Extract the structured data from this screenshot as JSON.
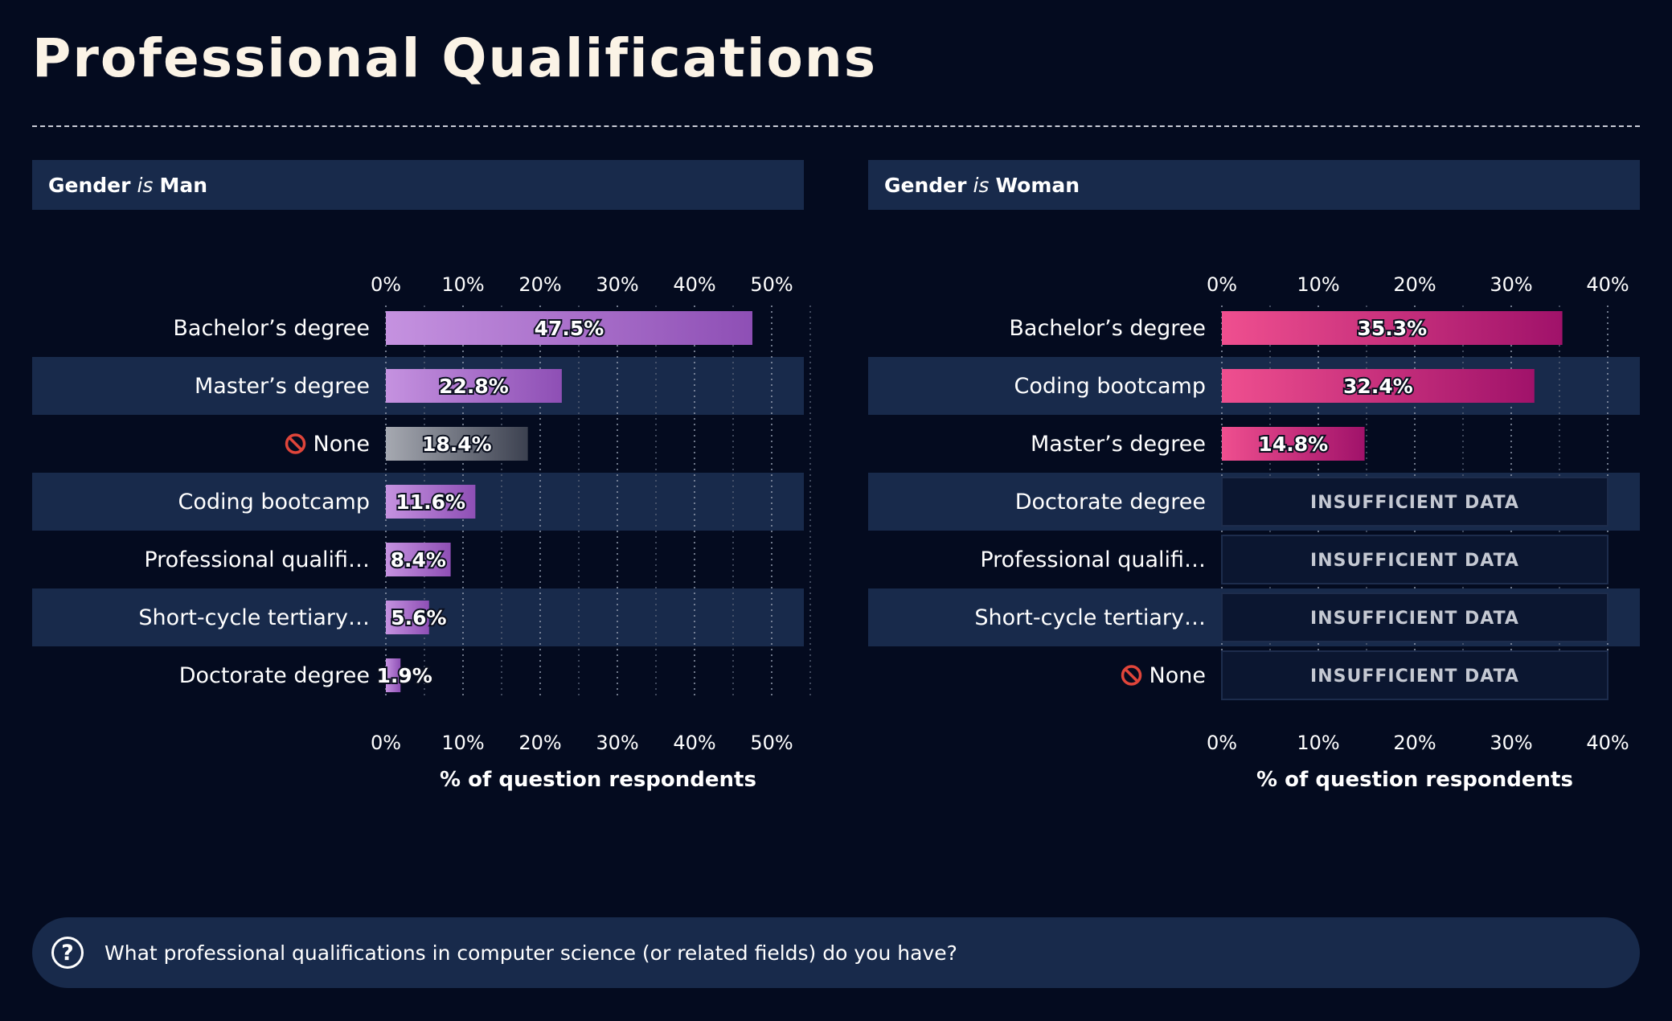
{
  "page": {
    "title": "Professional Qualifications",
    "question": "What professional qualifications in computer science (or related fields) do you have?",
    "question_icon": "question-circle-icon"
  },
  "colors": {
    "background": "#040b1f",
    "panel": "#182a4b",
    "man_bar_start": "#c592e0",
    "man_bar_end": "#8e4fb5",
    "woman_bar_start": "#ef4f8f",
    "woman_bar_end": "#a0126a",
    "none_bar_start": "#a6a9b1",
    "none_bar_end": "#3c4150"
  },
  "chart_data": [
    {
      "type": "bar",
      "orientation": "horizontal",
      "facet_prefix": "Gender",
      "facet_operator": "is",
      "facet_value": "Man",
      "xlabel": "% of question respondents",
      "xlim": [
        0,
        55
      ],
      "ticks": [
        "0%",
        "10%",
        "20%",
        "30%",
        "40%",
        "50%"
      ],
      "tick_values": [
        0,
        10,
        20,
        30,
        40,
        50
      ],
      "minor_ticks": [
        5,
        15,
        25,
        35,
        45,
        55
      ],
      "categories": [
        {
          "label": "Bachelor’s degree",
          "value": 47.5,
          "value_label": "47.5%",
          "none": false,
          "insufficient": false
        },
        {
          "label": "Master’s degree",
          "value": 22.8,
          "value_label": "22.8%",
          "none": false,
          "insufficient": false
        },
        {
          "label": "None",
          "value": 18.4,
          "value_label": "18.4%",
          "none": true,
          "insufficient": false
        },
        {
          "label": "Coding bootcamp",
          "value": 11.6,
          "value_label": "11.6%",
          "none": false,
          "insufficient": false
        },
        {
          "label": "Professional qualifi…",
          "value": 8.4,
          "value_label": "8.4%",
          "none": false,
          "insufficient": false
        },
        {
          "label": "Short-cycle tertiary…",
          "value": 5.6,
          "value_label": "5.6%",
          "none": false,
          "insufficient": false
        },
        {
          "label": "Doctorate degree",
          "value": 1.9,
          "value_label": "1.9%",
          "none": false,
          "insufficient": false
        }
      ]
    },
    {
      "type": "bar",
      "orientation": "horizontal",
      "facet_prefix": "Gender",
      "facet_operator": "is",
      "facet_value": "Woman",
      "xlabel": "% of question respondents",
      "xlim": [
        0,
        40
      ],
      "ticks": [
        "0%",
        "10%",
        "20%",
        "30%",
        "40%"
      ],
      "tick_values": [
        0,
        10,
        20,
        30,
        40
      ],
      "minor_ticks": [
        5,
        15,
        25,
        35
      ],
      "categories": [
        {
          "label": "Bachelor’s degree",
          "value": 35.3,
          "value_label": "35.3%",
          "none": false,
          "insufficient": false
        },
        {
          "label": "Coding bootcamp",
          "value": 32.4,
          "value_label": "32.4%",
          "none": false,
          "insufficient": false
        },
        {
          "label": "Master’s degree",
          "value": 14.8,
          "value_label": "14.8%",
          "none": false,
          "insufficient": false
        },
        {
          "label": "Doctorate degree",
          "value": null,
          "value_label": "INSUFFICIENT DATA",
          "none": false,
          "insufficient": true
        },
        {
          "label": "Professional qualifi…",
          "value": null,
          "value_label": "INSUFFICIENT DATA",
          "none": false,
          "insufficient": true
        },
        {
          "label": "Short-cycle tertiary…",
          "value": null,
          "value_label": "INSUFFICIENT DATA",
          "none": false,
          "insufficient": true
        },
        {
          "label": "None",
          "value": null,
          "value_label": "INSUFFICIENT DATA",
          "none": true,
          "insufficient": true
        }
      ]
    }
  ]
}
